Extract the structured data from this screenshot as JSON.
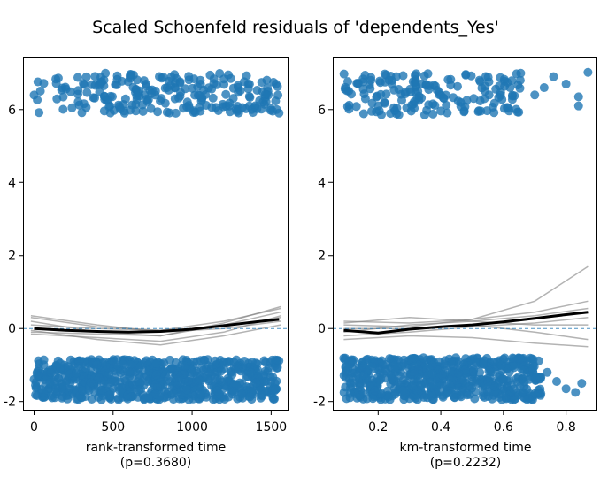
{
  "colors": {
    "points": "#1f77b4",
    "lowess": "#000000",
    "bootstrap": "#808080",
    "zero_line": "#1f77b4"
  },
  "chart_data": [
    {
      "type": "scatter",
      "title": "Scaled Schoenfeld residuals of 'dependents_Yes'",
      "xlabel": "rank-transformed time",
      "pvalue_label": "(p=0.3680)",
      "xlim": [
        -70,
        1610
      ],
      "ylim": [
        -2.25,
        7.45
      ],
      "xticks": [
        0,
        500,
        1000,
        1500
      ],
      "xtick_labels": [
        "0",
        "500",
        "1000",
        "1500"
      ],
      "yticks": [
        -2,
        0,
        2,
        4,
        6
      ],
      "ytick_labels": [
        "-2",
        "0",
        "2",
        "4",
        "6"
      ],
      "upper_band": {
        "x_range": [
          0,
          1550
        ],
        "y_range": [
          5.9,
          7.0
        ],
        "n": 230
      },
      "lower_band": {
        "x_range": [
          0,
          1550
        ],
        "y_range": [
          -1.95,
          -0.85
        ],
        "n": 700
      },
      "lowess_line": {
        "x": [
          0,
          200,
          400,
          600,
          800,
          1000,
          1200,
          1400,
          1550
        ],
        "y": [
          0.0,
          -0.05,
          -0.08,
          -0.1,
          -0.08,
          -0.02,
          0.08,
          0.18,
          0.25
        ]
      },
      "bootstrap_lines": [
        {
          "x": [
            -20,
            400,
            800,
            1200,
            1560
          ],
          "y": [
            0.3,
            0.05,
            -0.05,
            0.2,
            0.55
          ]
        },
        {
          "x": [
            -20,
            400,
            800,
            1200,
            1560
          ],
          "y": [
            -0.15,
            -0.25,
            -0.35,
            -0.1,
            0.35
          ]
        },
        {
          "x": [
            -20,
            400,
            800,
            1200,
            1560
          ],
          "y": [
            0.2,
            -0.1,
            -0.2,
            0.1,
            0.45
          ]
        },
        {
          "x": [
            -20,
            400,
            800,
            1200,
            1560
          ],
          "y": [
            -0.05,
            -0.3,
            -0.45,
            -0.2,
            0.1
          ]
        },
        {
          "x": [
            -20,
            400,
            800,
            1200,
            1560
          ],
          "y": [
            0.1,
            0.0,
            -0.05,
            0.05,
            0.3
          ]
        },
        {
          "x": [
            -20,
            400,
            800,
            1200,
            1560
          ],
          "y": [
            0.35,
            0.1,
            -0.1,
            0.0,
            0.2
          ]
        },
        {
          "x": [
            -20,
            400,
            800,
            1200,
            1560
          ],
          "y": [
            -0.1,
            -0.15,
            -0.2,
            0.15,
            0.6
          ]
        }
      ]
    },
    {
      "type": "scatter",
      "xlabel": "km-transformed time",
      "pvalue_label": "(p=0.2232)",
      "xlim": [
        0.055,
        0.9
      ],
      "ylim": [
        -2.25,
        7.45
      ],
      "xticks": [
        0.2,
        0.4,
        0.6,
        0.8
      ],
      "xtick_labels": [
        "0.2",
        "0.4",
        "0.6",
        "0.8"
      ],
      "yticks": [
        -2,
        0,
        2,
        4,
        6
      ],
      "ytick_labels": [
        "-2",
        "0",
        "2",
        "4",
        "6"
      ],
      "upper_band": {
        "x_range": [
          0.09,
          0.66
        ],
        "y_range": [
          5.85,
          7.0
        ],
        "n": 170
      },
      "lower_band": {
        "x_range": [
          0.09,
          0.72
        ],
        "y_range": [
          -1.95,
          -0.8
        ],
        "n": 600
      },
      "upper_outliers": {
        "x": [
          0.7,
          0.73,
          0.76,
          0.8,
          0.84,
          0.84,
          0.87
        ],
        "y": [
          6.4,
          6.6,
          6.9,
          6.7,
          6.1,
          6.35,
          7.02
        ]
      },
      "lower_outliers": {
        "x": [
          0.74,
          0.77,
          0.8,
          0.83,
          0.85
        ],
        "y": [
          -1.2,
          -1.45,
          -1.65,
          -1.75,
          -1.5
        ]
      },
      "lowess_line": {
        "x": [
          0.09,
          0.2,
          0.3,
          0.4,
          0.5,
          0.6,
          0.7,
          0.8,
          0.87
        ],
        "y": [
          -0.05,
          -0.12,
          -0.02,
          0.05,
          0.1,
          0.18,
          0.28,
          0.38,
          0.45
        ]
      },
      "bootstrap_lines": [
        {
          "x": [
            0.09,
            0.3,
            0.5,
            0.7,
            0.87
          ],
          "y": [
            0.1,
            0.05,
            0.25,
            0.75,
            1.7
          ]
        },
        {
          "x": [
            0.09,
            0.3,
            0.5,
            0.7,
            0.87
          ],
          "y": [
            0.2,
            0.15,
            0.25,
            0.45,
            0.75
          ]
        },
        {
          "x": [
            0.09,
            0.3,
            0.5,
            0.7,
            0.87
          ],
          "y": [
            -0.3,
            -0.2,
            -0.25,
            -0.4,
            -0.5
          ]
        },
        {
          "x": [
            0.09,
            0.3,
            0.5,
            0.7,
            0.87
          ],
          "y": [
            0.0,
            0.0,
            0.1,
            -0.1,
            -0.3
          ]
        },
        {
          "x": [
            0.09,
            0.3,
            0.5,
            0.7,
            0.87
          ],
          "y": [
            -0.1,
            0.1,
            0.2,
            0.35,
            0.55
          ]
        },
        {
          "x": [
            0.09,
            0.3,
            0.5,
            0.7,
            0.87
          ],
          "y": [
            0.15,
            0.3,
            0.2,
            0.1,
            0.1
          ]
        },
        {
          "x": [
            0.09,
            0.3,
            0.5,
            0.7,
            0.87
          ],
          "y": [
            -0.2,
            -0.1,
            0.05,
            0.15,
            0.3
          ]
        }
      ]
    }
  ]
}
